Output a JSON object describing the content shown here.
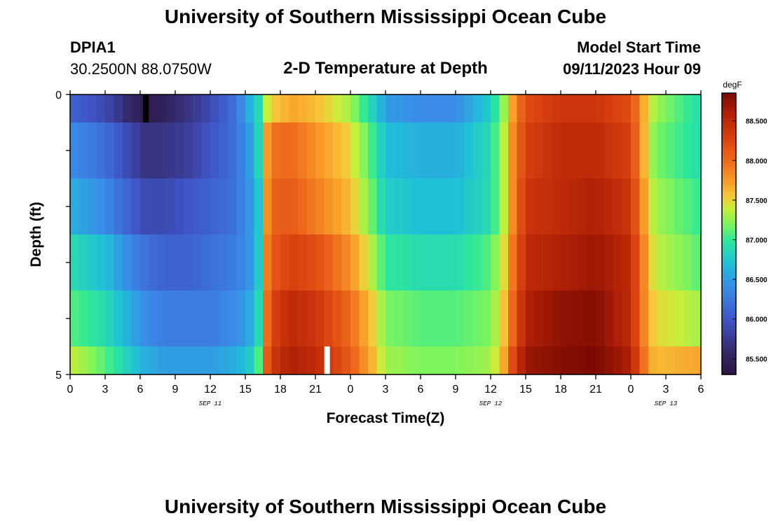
{
  "header": {
    "title": "University of Southern Mississippi Ocean Cube",
    "station_id": "DPIA1",
    "coordinates": "30.2500N  88.0750W",
    "plot_title": "2-D Temperature at Depth",
    "model_start_label": "Model Start Time",
    "model_start_value": "09/11/2023 Hour 09"
  },
  "footer": {
    "title": "University of Southern Mississippi Ocean Cube"
  },
  "colors": {
    "marker_dark": "#000000",
    "marker_light": "#ffffff"
  },
  "chart_data": {
    "type": "heatmap",
    "title": "2-D Temperature at Depth",
    "xlabel": "Forecast Time(Z)",
    "ylabel": "Depth (ft)",
    "x_ticks": [
      "0",
      "3",
      "6",
      "9",
      "12",
      "15",
      "18",
      "21",
      "0",
      "3",
      "6",
      "9",
      "12",
      "15",
      "18",
      "21",
      "0",
      "3",
      "6"
    ],
    "x_hours": [
      0,
      3,
      6,
      9,
      12,
      15,
      18,
      21,
      24,
      27,
      30,
      33,
      36,
      39,
      42,
      45,
      48,
      51,
      54
    ],
    "date_labels": [
      {
        "label": "SEP 11",
        "hour": 12
      },
      {
        "label": "SEP 12",
        "hour": 36
      },
      {
        "label": "SEP 13",
        "hour": 51
      }
    ],
    "y_ticks": [
      "0",
      "5"
    ],
    "ylim": [
      0,
      5
    ],
    "xlim": [
      0,
      54
    ],
    "depths": [
      0,
      1,
      2,
      3,
      4,
      5
    ],
    "depth_band_edges": [
      0,
      0.5,
      1.5,
      2.5,
      3.5,
      4.5,
      5
    ],
    "colorbar": {
      "unit": "degF",
      "min": 85.3,
      "max": 88.85,
      "ticks": [
        "85.500",
        "86.000",
        "86.500",
        "87.000",
        "87.500",
        "88.000",
        "88.500"
      ],
      "tick_values": [
        85.5,
        86.0,
        86.5,
        87.0,
        87.5,
        88.0,
        88.5
      ]
    },
    "time_knots": [
      0,
      3,
      5,
      6.5,
      8,
      10,
      12,
      14,
      15,
      16,
      16.5,
      17,
      18,
      19,
      21,
      24,
      26,
      27,
      30,
      33,
      36,
      37,
      38,
      39,
      42,
      45,
      48,
      49,
      50,
      54
    ],
    "temperature_by_depth": [
      [
        86.1,
        85.9,
        85.6,
        85.4,
        85.5,
        85.7,
        85.9,
        86.2,
        86.5,
        86.8,
        87.1,
        87.5,
        87.6,
        87.7,
        87.6,
        87.3,
        86.8,
        86.5,
        86.4,
        86.4,
        86.8,
        87.2,
        87.8,
        88.2,
        88.4,
        88.4,
        88.2,
        87.7,
        87.3,
        86.9
      ],
      [
        86.4,
        86.2,
        85.9,
        85.7,
        85.7,
        85.8,
        86.0,
        86.2,
        86.4,
        86.7,
        87.3,
        87.9,
        88.0,
        88.0,
        87.8,
        87.5,
        87.0,
        86.7,
        86.6,
        86.6,
        86.9,
        87.3,
        87.9,
        88.3,
        88.5,
        88.5,
        88.3,
        87.7,
        87.2,
        86.9
      ],
      [
        86.6,
        86.4,
        86.1,
        85.9,
        85.9,
        86.0,
        86.1,
        86.2,
        86.4,
        86.6,
        87.2,
        88.0,
        88.1,
        88.1,
        87.9,
        87.6,
        87.1,
        86.8,
        86.7,
        86.7,
        86.9,
        87.3,
        87.9,
        88.4,
        88.5,
        88.6,
        88.4,
        87.8,
        87.3,
        87.0
      ],
      [
        86.9,
        86.7,
        86.4,
        86.2,
        86.1,
        86.1,
        86.2,
        86.3,
        86.4,
        86.6,
        87.3,
        88.1,
        88.2,
        88.3,
        88.2,
        87.8,
        87.3,
        87.0,
        86.9,
        86.9,
        87.1,
        87.4,
        88.0,
        88.5,
        88.6,
        88.7,
        88.5,
        87.9,
        87.4,
        87.1
      ],
      [
        87.1,
        86.9,
        86.6,
        86.4,
        86.3,
        86.3,
        86.3,
        86.4,
        86.5,
        86.7,
        87.4,
        88.2,
        88.4,
        88.5,
        88.4,
        88.0,
        87.5,
        87.2,
        87.1,
        87.1,
        87.2,
        87.5,
        88.1,
        88.6,
        88.75,
        88.8,
        88.5,
        87.9,
        87.5,
        87.3
      ],
      [
        87.4,
        87.1,
        86.8,
        86.6,
        86.5,
        86.5,
        86.5,
        86.6,
        86.7,
        86.9,
        87.6,
        88.3,
        88.5,
        88.6,
        88.5,
        88.1,
        87.6,
        87.3,
        87.2,
        87.2,
        87.3,
        87.6,
        88.3,
        88.7,
        88.8,
        88.85,
        88.6,
        88.0,
        87.6,
        87.7
      ]
    ],
    "colormap_stops": [
      {
        "v": 85.3,
        "c": "#2b1540"
      },
      {
        "v": 85.6,
        "c": "#35286a"
      },
      {
        "v": 86.0,
        "c": "#3f55c8"
      },
      {
        "v": 86.4,
        "c": "#3a8be8"
      },
      {
        "v": 86.7,
        "c": "#1fc0d8"
      },
      {
        "v": 87.0,
        "c": "#2ee89a"
      },
      {
        "v": 87.2,
        "c": "#7ef45c"
      },
      {
        "v": 87.4,
        "c": "#c8ee3a"
      },
      {
        "v": 87.55,
        "c": "#f6c83a"
      },
      {
        "v": 87.75,
        "c": "#f79a28"
      },
      {
        "v": 88.0,
        "c": "#ee6a1c"
      },
      {
        "v": 88.3,
        "c": "#d8400f"
      },
      {
        "v": 88.6,
        "c": "#b02006"
      },
      {
        "v": 88.85,
        "c": "#7a0a02"
      }
    ],
    "markers": [
      {
        "hour": 6.5,
        "depth_top": 0,
        "depth_bottom": 0.5,
        "color": "dark"
      },
      {
        "hour": 22.0,
        "depth_top": 4.5,
        "depth_bottom": 5,
        "color": "light"
      }
    ]
  }
}
